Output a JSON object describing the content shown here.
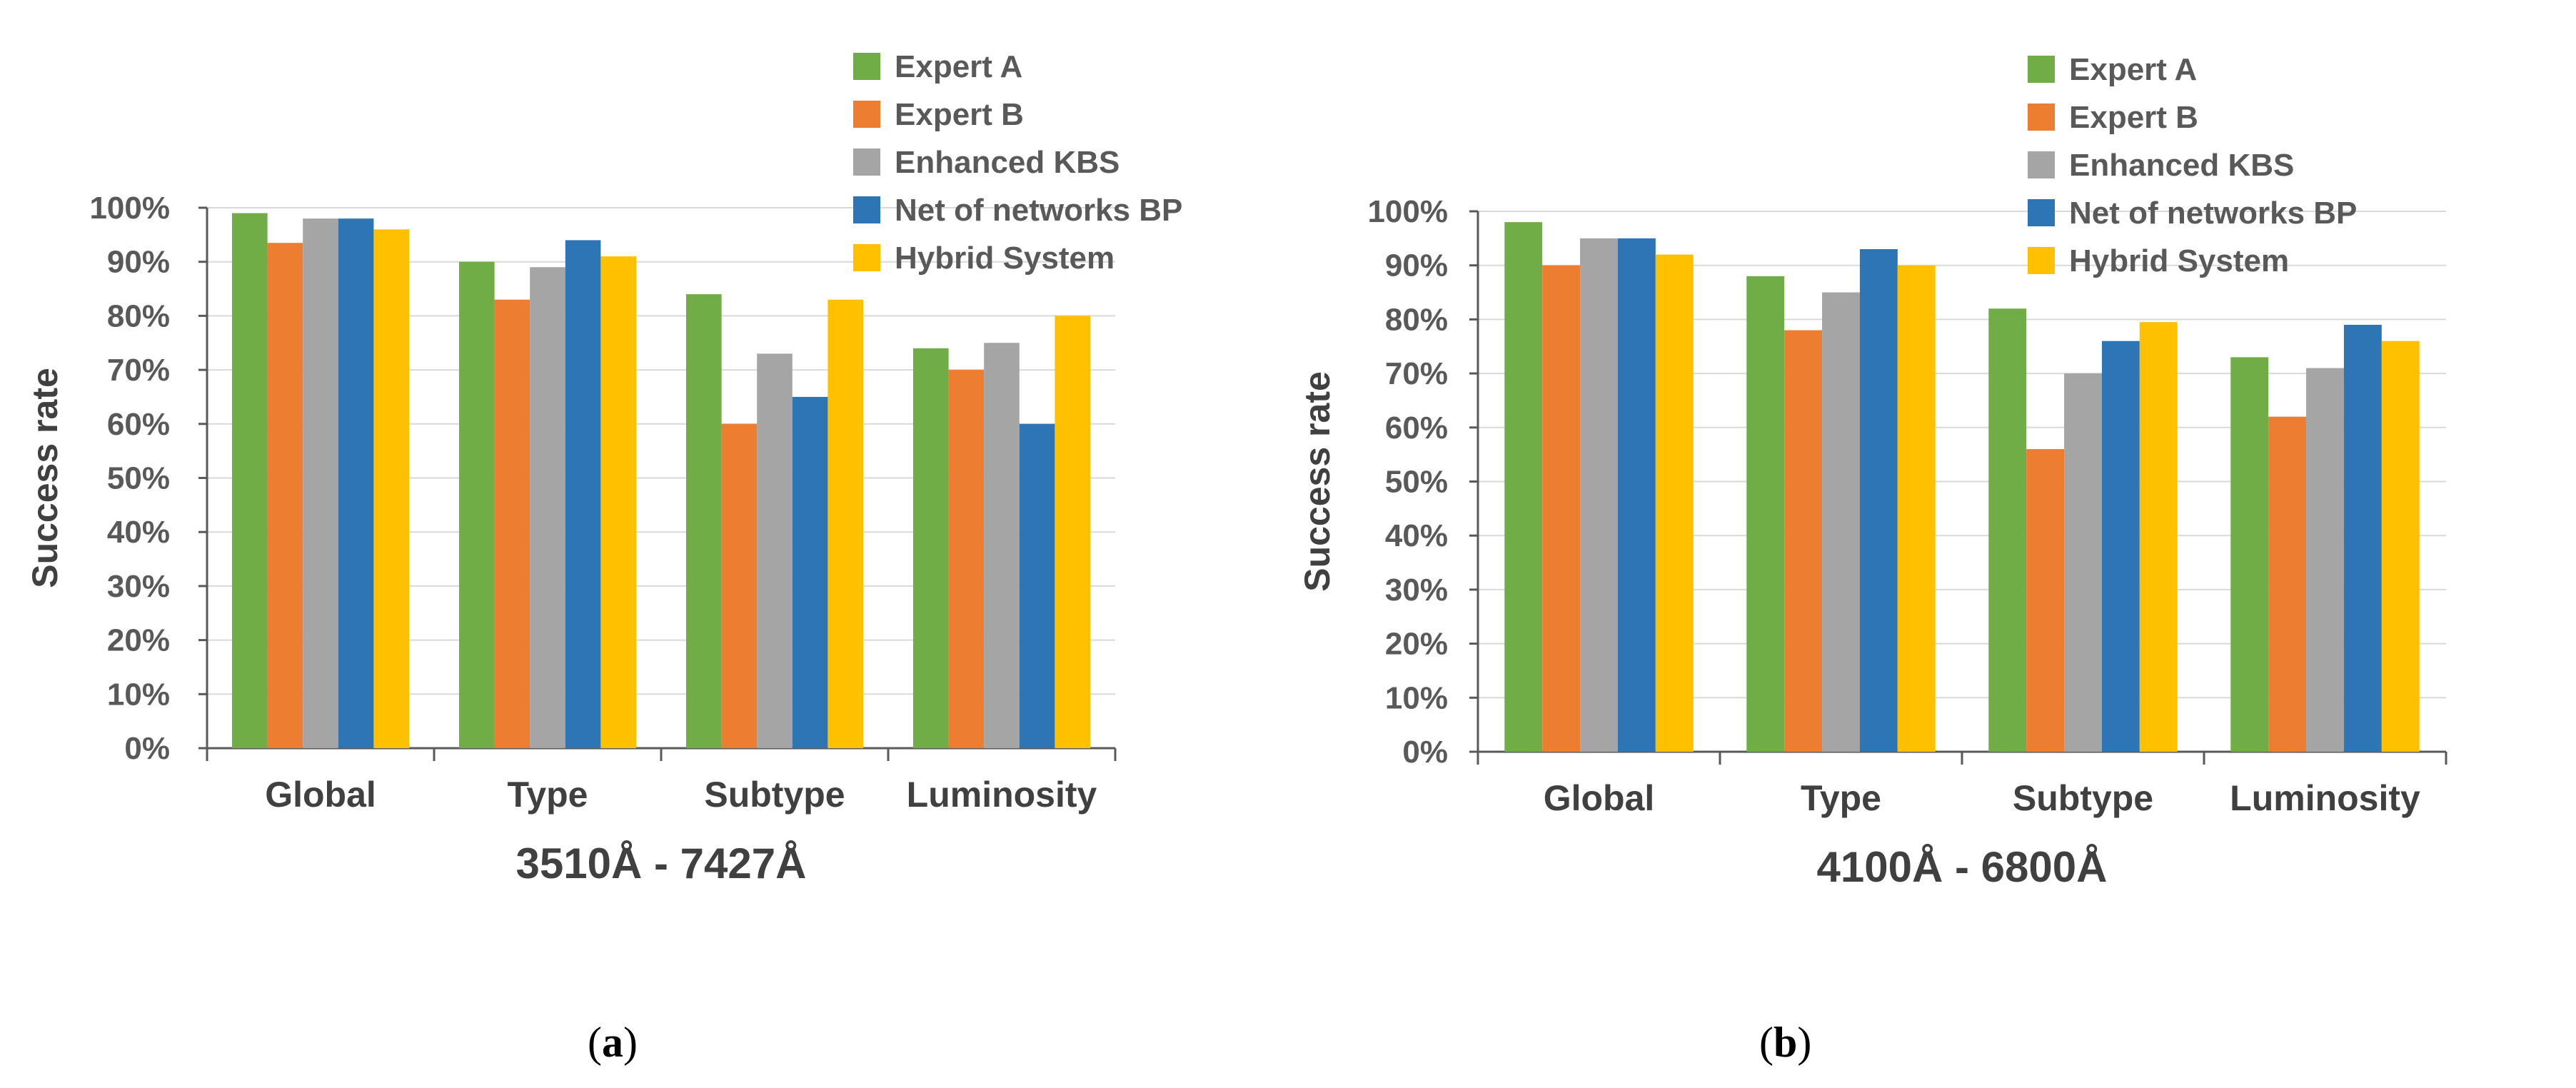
{
  "chart_data": [
    {
      "type": "bar",
      "panel": "a",
      "xlabel": "3510Å - 7427Å",
      "ylabel": "Success rate",
      "categories": [
        "Global",
        "Type",
        "Subtype",
        "Luminosity"
      ],
      "ylim": [
        0,
        100
      ],
      "yticks": [
        "0%",
        "10%",
        "20%",
        "30%",
        "40%",
        "50%",
        "60%",
        "70%",
        "80%",
        "90%",
        "100%"
      ],
      "legend_position": "top-right",
      "series": [
        {
          "name": "Expert A",
          "color": "#70ad47",
          "values": [
            99,
            90,
            84,
            74
          ]
        },
        {
          "name": "Expert B",
          "color": "#ed7d31",
          "values": [
            93.5,
            83,
            60,
            70
          ]
        },
        {
          "name": "Enhanced KBS",
          "color": "#a5a5a5",
          "values": [
            98,
            89,
            73,
            75
          ]
        },
        {
          "name": "Net of networks BP",
          "color": "#2e75b6",
          "values": [
            98,
            94,
            65,
            60
          ]
        },
        {
          "name": "Hybrid System",
          "color": "#ffc000",
          "values": [
            96,
            91,
            83,
            80
          ]
        }
      ]
    },
    {
      "type": "bar",
      "panel": "b",
      "xlabel": "4100Å - 6800Å",
      "ylabel": "Success rate",
      "categories": [
        "Global",
        "Type",
        "Subtype",
        "Luminosity"
      ],
      "ylim": [
        0,
        100
      ],
      "yticks": [
        "0%",
        "10%",
        "20%",
        "30%",
        "40%",
        "50%",
        "60%",
        "70%",
        "80%",
        "90%",
        "100%"
      ],
      "legend_position": "top-right",
      "series": [
        {
          "name": "Expert A",
          "color": "#70ad47",
          "values": [
            98,
            88,
            82,
            73
          ]
        },
        {
          "name": "Expert B",
          "color": "#ed7d31",
          "values": [
            90,
            78,
            56,
            62
          ]
        },
        {
          "name": "Enhanced KBS",
          "color": "#a5a5a5",
          "values": [
            95,
            85,
            70,
            71
          ]
        },
        {
          "name": "Net of networks BP",
          "color": "#2e75b6",
          "values": [
            95,
            93,
            76,
            79
          ]
        },
        {
          "name": "Hybrid System",
          "color": "#ffc000",
          "values": [
            92,
            90,
            79.5,
            76
          ]
        }
      ]
    }
  ]
}
